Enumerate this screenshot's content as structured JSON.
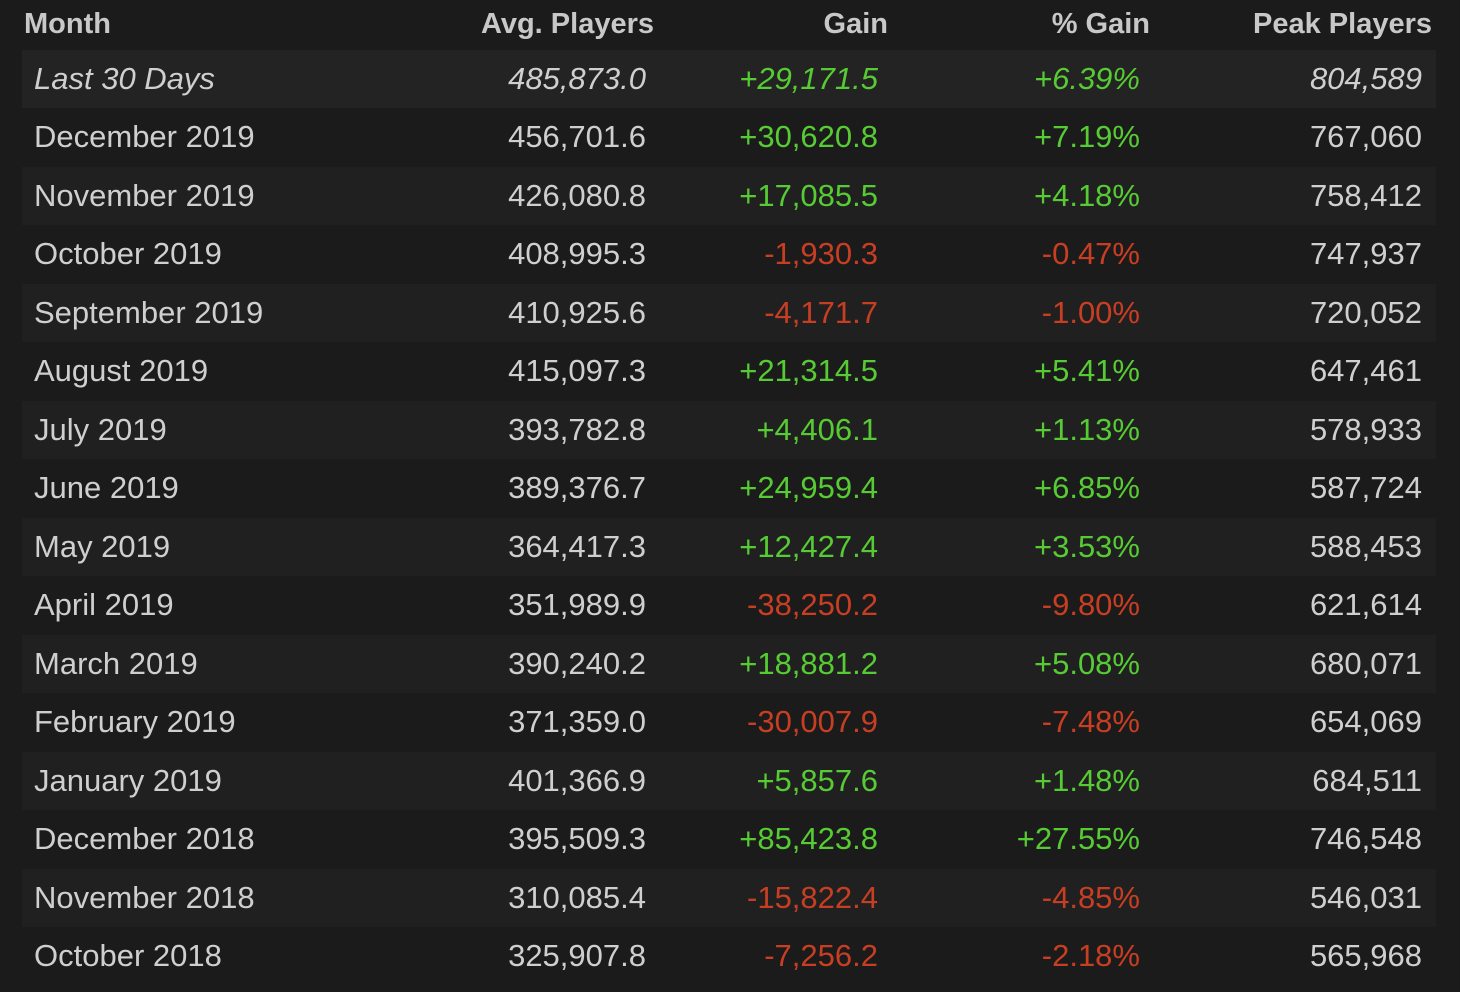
{
  "table": {
    "headers": {
      "month": "Month",
      "avg_players": "Avg. Players",
      "gain": "Gain",
      "pct_gain": "% Gain",
      "peak_players": "Peak Players"
    },
    "rows": [
      {
        "month": "Last 30 Days",
        "avg": "485,873.0",
        "gain": "+29,171.5",
        "pct": "+6.39%",
        "peak": "804,589",
        "trend": "pos"
      },
      {
        "month": "December 2019",
        "avg": "456,701.6",
        "gain": "+30,620.8",
        "pct": "+7.19%",
        "peak": "767,060",
        "trend": "pos"
      },
      {
        "month": "November 2019",
        "avg": "426,080.8",
        "gain": "+17,085.5",
        "pct": "+4.18%",
        "peak": "758,412",
        "trend": "pos"
      },
      {
        "month": "October 2019",
        "avg": "408,995.3",
        "gain": "-1,930.3",
        "pct": "-0.47%",
        "peak": "747,937",
        "trend": "neg"
      },
      {
        "month": "September 2019",
        "avg": "410,925.6",
        "gain": "-4,171.7",
        "pct": "-1.00%",
        "peak": "720,052",
        "trend": "neg"
      },
      {
        "month": "August 2019",
        "avg": "415,097.3",
        "gain": "+21,314.5",
        "pct": "+5.41%",
        "peak": "647,461",
        "trend": "pos"
      },
      {
        "month": "July 2019",
        "avg": "393,782.8",
        "gain": "+4,406.1",
        "pct": "+1.13%",
        "peak": "578,933",
        "trend": "pos"
      },
      {
        "month": "June 2019",
        "avg": "389,376.7",
        "gain": "+24,959.4",
        "pct": "+6.85%",
        "peak": "587,724",
        "trend": "pos"
      },
      {
        "month": "May 2019",
        "avg": "364,417.3",
        "gain": "+12,427.4",
        "pct": "+3.53%",
        "peak": "588,453",
        "trend": "pos"
      },
      {
        "month": "April 2019",
        "avg": "351,989.9",
        "gain": "-38,250.2",
        "pct": "-9.80%",
        "peak": "621,614",
        "trend": "neg"
      },
      {
        "month": "March 2019",
        "avg": "390,240.2",
        "gain": "+18,881.2",
        "pct": "+5.08%",
        "peak": "680,071",
        "trend": "pos"
      },
      {
        "month": "February 2019",
        "avg": "371,359.0",
        "gain": "-30,007.9",
        "pct": "-7.48%",
        "peak": "654,069",
        "trend": "neg"
      },
      {
        "month": "January 2019",
        "avg": "401,366.9",
        "gain": "+5,857.6",
        "pct": "+1.48%",
        "peak": "684,511",
        "trend": "pos"
      },
      {
        "month": "December 2018",
        "avg": "395,509.3",
        "gain": "+85,423.8",
        "pct": "+27.55%",
        "peak": "746,548",
        "trend": "pos"
      },
      {
        "month": "November 2018",
        "avg": "310,085.4",
        "gain": "-15,822.4",
        "pct": "-4.85%",
        "peak": "546,031",
        "trend": "neg"
      },
      {
        "month": "October 2018",
        "avg": "325,907.8",
        "gain": "-7,256.2",
        "pct": "-2.18%",
        "peak": "565,968",
        "trend": "neg"
      }
    ]
  },
  "colors": {
    "background": "#1b1b1b",
    "positive": "#57cb33",
    "negative": "#c83e22",
    "text": "#cfcfcf"
  }
}
